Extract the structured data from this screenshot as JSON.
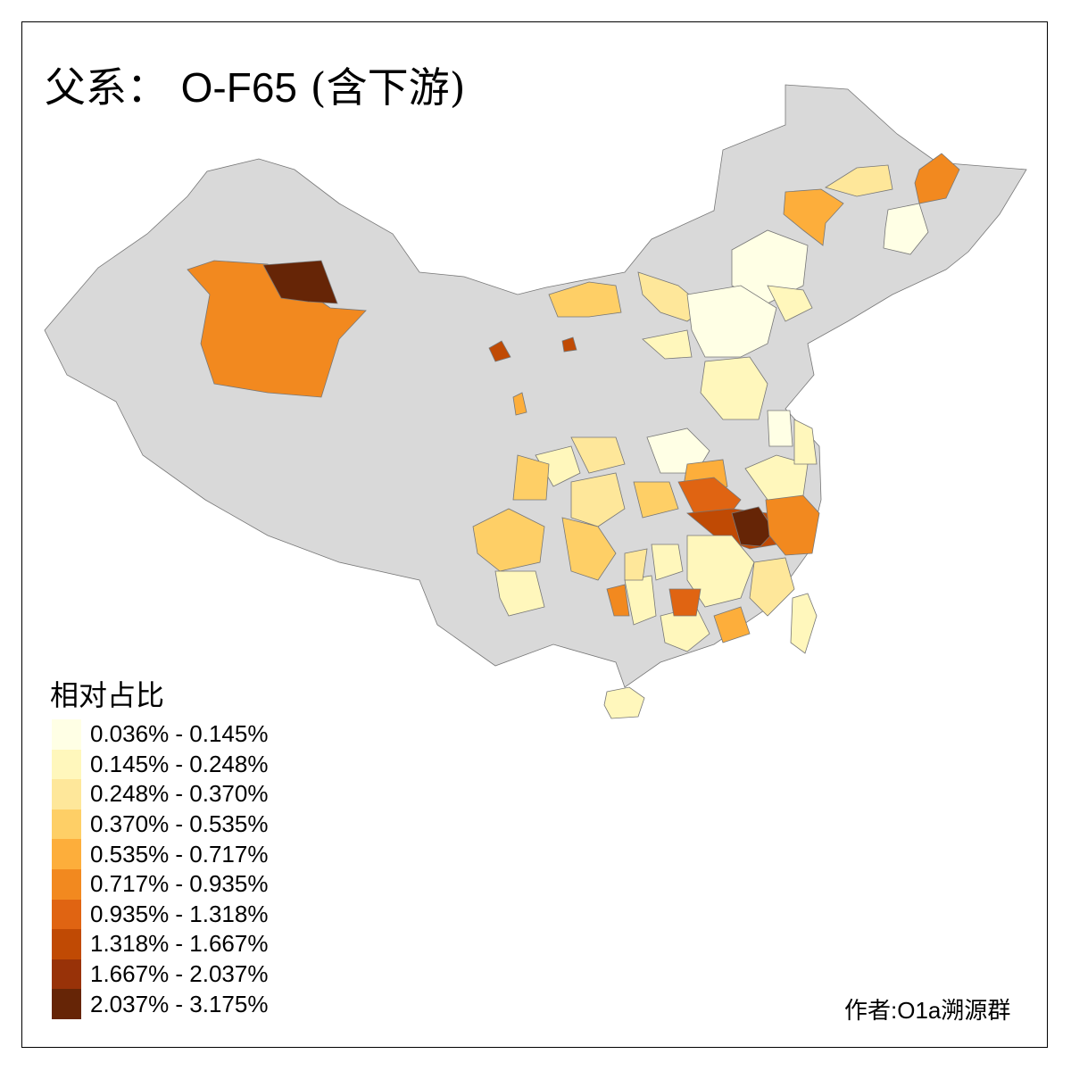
{
  "title": {
    "prefix": "父系：",
    "haplogroup": "O-F65",
    "suffix": "(含下游)"
  },
  "legend": {
    "title": "相对占比",
    "items": [
      {
        "label": "0.036% - 0.145%",
        "color": "#FFFFE5"
      },
      {
        "label": "0.145% - 0.248%",
        "color": "#FFF7BC"
      },
      {
        "label": "0.248% - 0.370%",
        "color": "#FEE79A"
      },
      {
        "label": "0.370% - 0.535%",
        "color": "#FECF66"
      },
      {
        "label": "0.535% - 0.717%",
        "color": "#FDAE3B"
      },
      {
        "label": "0.717% - 0.935%",
        "color": "#F2891F"
      },
      {
        "label": "0.935% - 1.318%",
        "color": "#E06412"
      },
      {
        "label": "1.318% - 1.667%",
        "color": "#C04A04"
      },
      {
        "label": "1.667% - 2.037%",
        "color": "#983208"
      },
      {
        "label": "2.037% - 3.175%",
        "color": "#662506"
      }
    ]
  },
  "no_data_color": "#D9D9D9",
  "author": "作者:O1a溯源群"
}
